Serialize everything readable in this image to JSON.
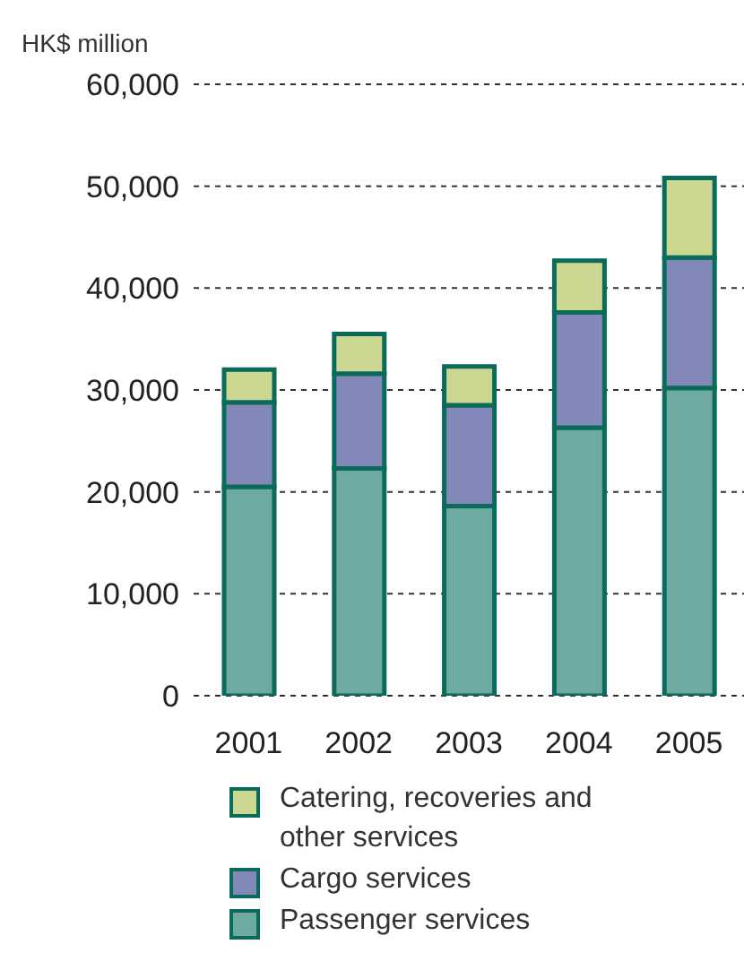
{
  "chart_data": {
    "type": "bar",
    "stacked": true,
    "ylabel": "HK$ million",
    "categories": [
      "2001",
      "2002",
      "2003",
      "2004",
      "2005"
    ],
    "series": [
      {
        "name": "Passenger services",
        "color": "#6eaaa2",
        "values": [
          20500,
          22300,
          18600,
          26300,
          30200
        ]
      },
      {
        "name": "Cargo services",
        "color": "#8288b8",
        "values": [
          8300,
          9300,
          9900,
          11300,
          12800
        ]
      },
      {
        "name": "Catering, recoveries and other services",
        "color": "#cbd791",
        "values": [
          3200,
          3900,
          3800,
          5100,
          7800
        ]
      }
    ],
    "ylim": [
      0,
      60000
    ],
    "yticks": [
      0,
      {
        "value": 10000,
        "label": "10,000"
      },
      {
        "value": 20000,
        "label": "20,000"
      },
      {
        "value": 30000,
        "label": "30,000"
      },
      {
        "value": 40000,
        "label": "40,000"
      },
      {
        "value": 50000,
        "label": "50,000"
      },
      {
        "value": 60000,
        "label": "60,000"
      }
    ],
    "grid": "y",
    "legend": "bottom"
  }
}
